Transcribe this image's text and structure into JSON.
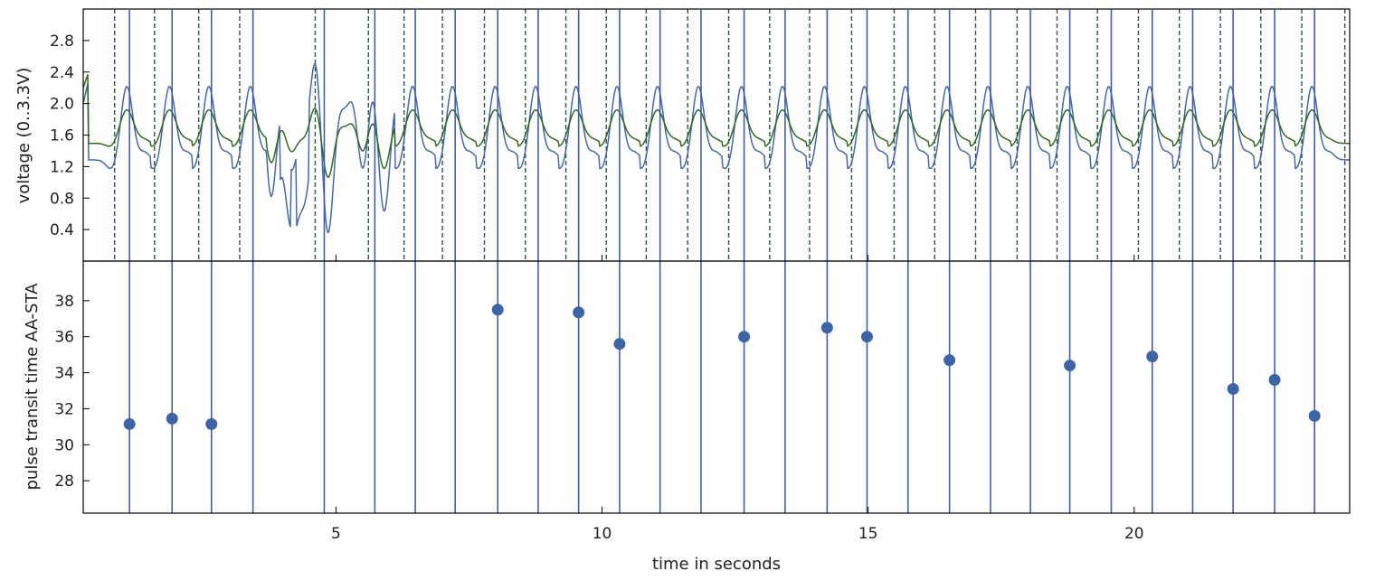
{
  "chart_data": [
    {
      "type": "line",
      "panel": "top",
      "ylabel": "voltage (0..3.3V)",
      "xlim": [
        0.25,
        24.05
      ],
      "ylim": [
        0.0,
        3.2
      ],
      "yticks": [
        "0.4",
        "0.8",
        "1.2",
        "1.6",
        "2.0",
        "2.4",
        "2.8"
      ],
      "colors": {
        "series_a": "#4467a9",
        "series_b": "#2f6b1e",
        "beat_lines": "#3f5fa8",
        "onset_lines": "#2e5446"
      },
      "series": [
        {
          "values_desc": "blue PPG-like waveform",
          "pattern": {
            "peak": 2.22,
            "trough": 1.12
          }
        },
        {
          "values_desc": "green waveform",
          "pattern": {
            "peak": 1.92,
            "trough": 1.42
          }
        }
      ],
      "solid_lines_x": [
        1.12,
        1.92,
        2.66,
        3.44,
        4.78,
        5.73,
        6.49,
        7.24,
        8.04,
        8.8,
        9.56,
        10.33,
        11.09,
        11.86,
        12.67,
        13.44,
        14.23,
        14.98,
        15.75,
        16.53,
        17.3,
        18.05,
        18.79,
        19.57,
        20.34,
        21.1,
        21.86,
        22.64,
        23.39
      ],
      "dashed_lines_x": [
        0.84,
        1.59,
        2.42,
        3.19,
        4.61,
        5.61,
        6.28,
        7.0,
        7.79,
        8.56,
        9.32,
        10.08,
        10.83,
        11.61,
        12.38,
        13.15,
        13.9,
        14.69,
        15.49,
        16.25,
        17.02,
        17.8,
        18.55,
        19.31,
        20.08,
        20.85,
        21.62,
        22.38,
        23.15,
        23.96
      ]
    },
    {
      "type": "scatter",
      "panel": "bottom",
      "xlabel": "time in seconds",
      "ylabel": "pulse transit time AA-STA",
      "xlim": [
        0.25,
        24.05
      ],
      "ylim": [
        26.2,
        40.2
      ],
      "xticks": [
        "5",
        "10",
        "15",
        "20"
      ],
      "yticks": [
        "28",
        "30",
        "32",
        "34",
        "36",
        "38"
      ],
      "x": [
        1.12,
        1.92,
        2.66,
        8.04,
        9.56,
        10.33,
        12.67,
        14.23,
        14.98,
        16.53,
        18.79,
        20.34,
        21.86,
        22.64,
        23.39
      ],
      "y": [
        31.15,
        31.45,
        31.15,
        37.5,
        37.35,
        35.6,
        36.0,
        36.5,
        36.0,
        34.7,
        34.4,
        34.9,
        33.1,
        33.6,
        31.6
      ],
      "colors": {
        "points": "#3d64a6"
      }
    }
  ]
}
